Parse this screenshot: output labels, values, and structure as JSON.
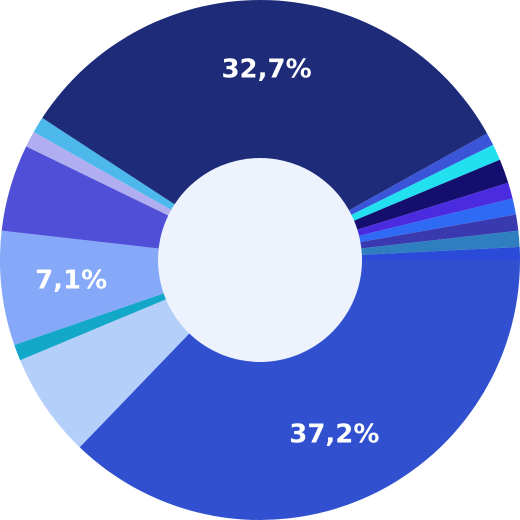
{
  "chart_data": {
    "type": "donut",
    "values": [
      37.2,
      6.5,
      1,
      7.1,
      5.4,
      1,
      1,
      32.7,
      0.8,
      1,
      1.5,
      1,
      1,
      1,
      1,
      0.8
    ],
    "value_labels": [
      "37,2%",
      null,
      null,
      "7,1%",
      null,
      null,
      null,
      "32,7%",
      null,
      null,
      null,
      null,
      null,
      null,
      null,
      null
    ],
    "colors": [
      "#3050d0",
      "#b3cffa",
      "#13a8c8",
      "#85a8f8",
      "#4f4fd8",
      "#b0aef0",
      "#4cb8ec",
      "#1e2b78",
      "#3a55d8",
      "#22e0f0",
      "#140f6e",
      "#4a2be0",
      "#2f6af5",
      "#3a3ab0",
      "#2f7fc0",
      "#2a4bd8"
    ]
  }
}
